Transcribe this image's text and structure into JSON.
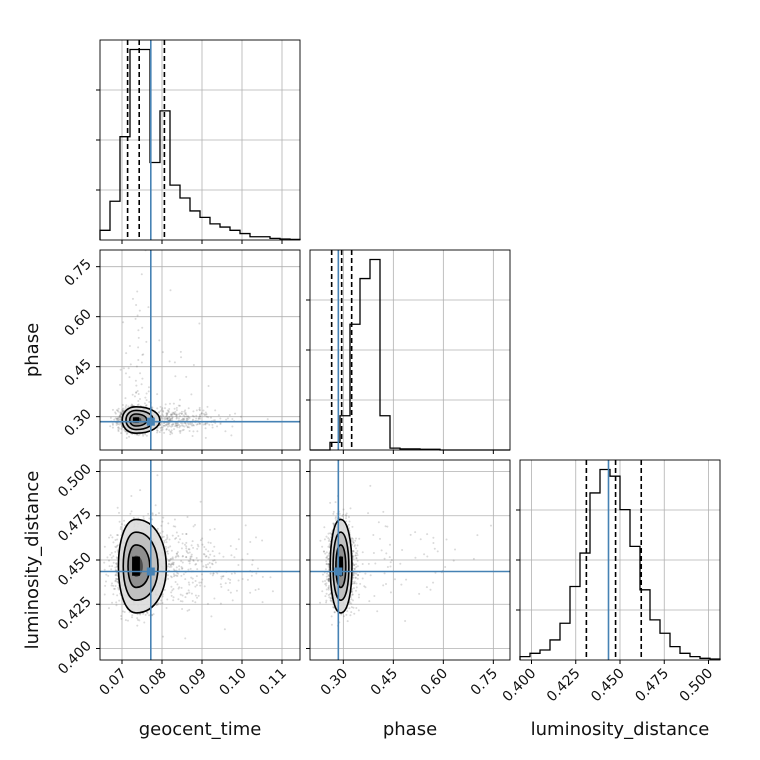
{
  "chart_data": {
    "type": "corner",
    "parameters": [
      {
        "name": "geocent_time",
        "range": [
          0.0645,
          0.1145
        ],
        "ticks": [
          "0.07",
          "0.08",
          "0.09",
          "0.10",
          "0.11"
        ],
        "tick_values": [
          0.07,
          0.08,
          0.09,
          0.1,
          0.11
        ],
        "truth": 0.0772,
        "quantiles": [
          0.0714,
          0.0743,
          0.0806
        ],
        "hist_counts": [
          3,
          12,
          32,
          59,
          59,
          24,
          40,
          17,
          13,
          9,
          7,
          5,
          4,
          3,
          2,
          1,
          1,
          0.5,
          0.3,
          0.2
        ]
      },
      {
        "name": "phase",
        "range": [
          0.2,
          0.8
        ],
        "ticks": [
          "0.30",
          "0.45",
          "0.60",
          "0.75"
        ],
        "tick_values": [
          0.3,
          0.45,
          0.6,
          0.75
        ],
        "truth": 0.285,
        "quantiles": [
          0.265,
          0.295,
          0.325
        ],
        "hist_counts": [
          0,
          0,
          2,
          9,
          33,
          45,
          50,
          9,
          0.5,
          0.3,
          0.3,
          0.2,
          0.2,
          0,
          0,
          0,
          0,
          0,
          0,
          0
        ]
      },
      {
        "name": "luminosity_distance",
        "range": [
          0.3935,
          0.5065
        ],
        "ticks": [
          "0.400",
          "0.425",
          "0.450",
          "0.475",
          "0.500"
        ],
        "tick_values": [
          0.4,
          0.425,
          0.45,
          0.475,
          0.5
        ],
        "truth": 0.4435,
        "quantiles": [
          0.431,
          0.4475,
          0.462
        ],
        "hist_counts": [
          1,
          2,
          3,
          6,
          11,
          22,
          32,
          50,
          57,
          55,
          45,
          34,
          21,
          12,
          8,
          4,
          2,
          1,
          0.5,
          0.3
        ]
      }
    ],
    "pairs": [
      {
        "x": "geocent_time",
        "y": "phase",
        "center": [
          0.0735,
          0.29
        ],
        "spread": [
          0.0022,
          0.018
        ]
      },
      {
        "x": "geocent_time",
        "y": "luminosity_distance",
        "center": [
          0.0735,
          0.4465
        ],
        "spread": [
          0.0028,
          0.012
        ]
      },
      {
        "x": "phase",
        "y": "luminosity_distance",
        "center": [
          0.292,
          0.4465
        ],
        "spread": [
          0.02,
          0.012
        ]
      }
    ],
    "truth_color": "#4682b4",
    "grid": true
  }
}
